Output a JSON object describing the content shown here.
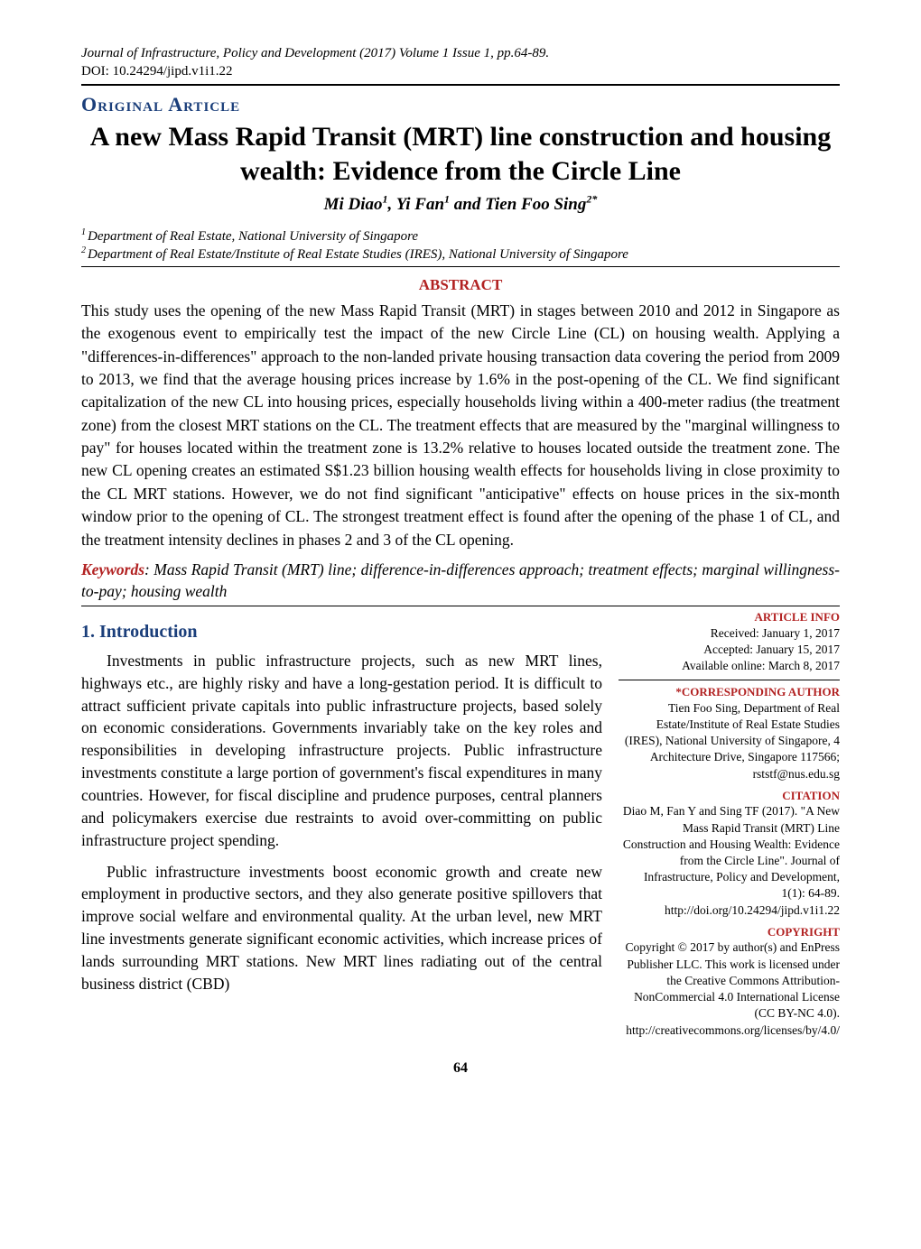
{
  "header": {
    "journal_line": "Journal of Infrastructure, Policy and Development (2017) Volume 1 Issue 1, pp.64-89.",
    "doi_line": "DOI: 10.24294/jipd.v1i1.22"
  },
  "article_type": "Original Article",
  "title": "A new Mass Rapid Transit (MRT) line construction and housing wealth: Evidence from the Circle Line",
  "authors_html": "Mi Diao¹, Yi Fan¹ and Tien Foo Sing²*",
  "affiliations": {
    "a1_num": "1",
    "a1": "Department of Real Estate, National University of Singapore",
    "a2_num": "2",
    "a2": "Department of Real Estate/Institute of Real Estate Studies (IRES), National University of Singapore"
  },
  "abstract": {
    "heading": "ABSTRACT",
    "text": "This study uses the opening of the new Mass Rapid Transit (MRT) in stages between 2010 and 2012 in Singapore as the exogenous event to empirically test the impact of the new Circle Line (CL) on housing wealth. Applying a \"differences-in-differences\" approach to the non-landed private housing transaction data covering the period from 2009 to 2013, we find that the average housing prices increase by 1.6% in the post-opening of the CL. We find significant capitalization of the new CL into housing prices, especially households living within a 400-meter radius (the treatment zone) from the closest MRT stations on the CL. The treatment effects that are measured by the \"marginal willingness to pay\" for houses located within the treatment zone is 13.2% relative to houses located outside the treatment zone. The new CL opening creates an estimated S$1.23 billion housing wealth effects for households living in close proximity to the CL MRT stations. However, we do not find significant \"anticipative\" effects on house prices in the six-month window prior to the opening of CL. The strongest treatment effect is found after the opening of the phase 1 of CL, and the treatment intensity declines in phases 2 and 3 of the CL opening."
  },
  "keywords": {
    "label": "Keywords",
    "text": ": Mass Rapid Transit (MRT) line; difference-in-differences approach; treatment effects; marginal willingness-to-pay; housing wealth"
  },
  "section1": {
    "heading": "1.   Introduction",
    "para1": "Investments in public infrastructure projects, such as new MRT lines, highways etc., are highly risky and have a long-gestation period. It is difficult to attract sufficient private capitals into public infrastructure projects, based solely on economic considerations. Governments invariably take on the key roles and responsibilities in developing infrastructure projects. Public infrastructure investments constitute a large portion of government's fiscal expenditures in many countries. However, for fiscal discipline and prudence purposes, central planners and policymakers exercise due restraints to avoid over-committing on public infrastructure project spending.",
    "para2": "Public infrastructure investments boost economic growth and create new employment in productive sectors, and they also generate positive spillovers that improve social welfare and environmental quality. At the urban level, new MRT line investments generate significant economic activities, which increase prices of lands surrounding MRT stations. New MRT lines radiating out of the central business district (CBD)"
  },
  "sidebar": {
    "article_info_heading": "ARTICLE INFO",
    "received": "Received: January 1, 2017",
    "accepted": "Accepted: January 15, 2017",
    "available": "Available online: March 8, 2017",
    "corresponding_heading": "*CORRESPONDING AUTHOR",
    "corresponding_text": "Tien Foo Sing, Department of Real Estate/Institute of Real Estate Studies (IRES), National University of Singapore, 4 Architecture Drive, Singapore 117566; rststf@nus.edu.sg",
    "citation_heading": "CITATION",
    "citation_text": "Diao M, Fan Y and Sing TF (2017). \"A New Mass Rapid Transit (MRT) Line Construction and Housing Wealth: Evidence from the Circle Line\". Journal of Infrastructure, Policy and Development, 1(1): 64-89. http://doi.org/10.24294/jipd.v1i1.22",
    "copyright_heading": "COPYRIGHT",
    "copyright_text": "Copyright © 2017 by author(s) and EnPress Publisher LLC. This work is licensed under the Creative Commons Attribution-NonCommercial 4.0 International License (CC BY-NC 4.0). http://creativecommons.org/licenses/by/4.0/"
  },
  "page_number": "64",
  "colors": {
    "heading_blue": "#1a3e7a",
    "accent_red": "#b22222",
    "text": "#000000",
    "background": "#ffffff"
  },
  "typography": {
    "body_family": "Times New Roman",
    "title_size_pt": 30,
    "body_size_pt": 17.5,
    "side_size_pt": 13.5
  }
}
